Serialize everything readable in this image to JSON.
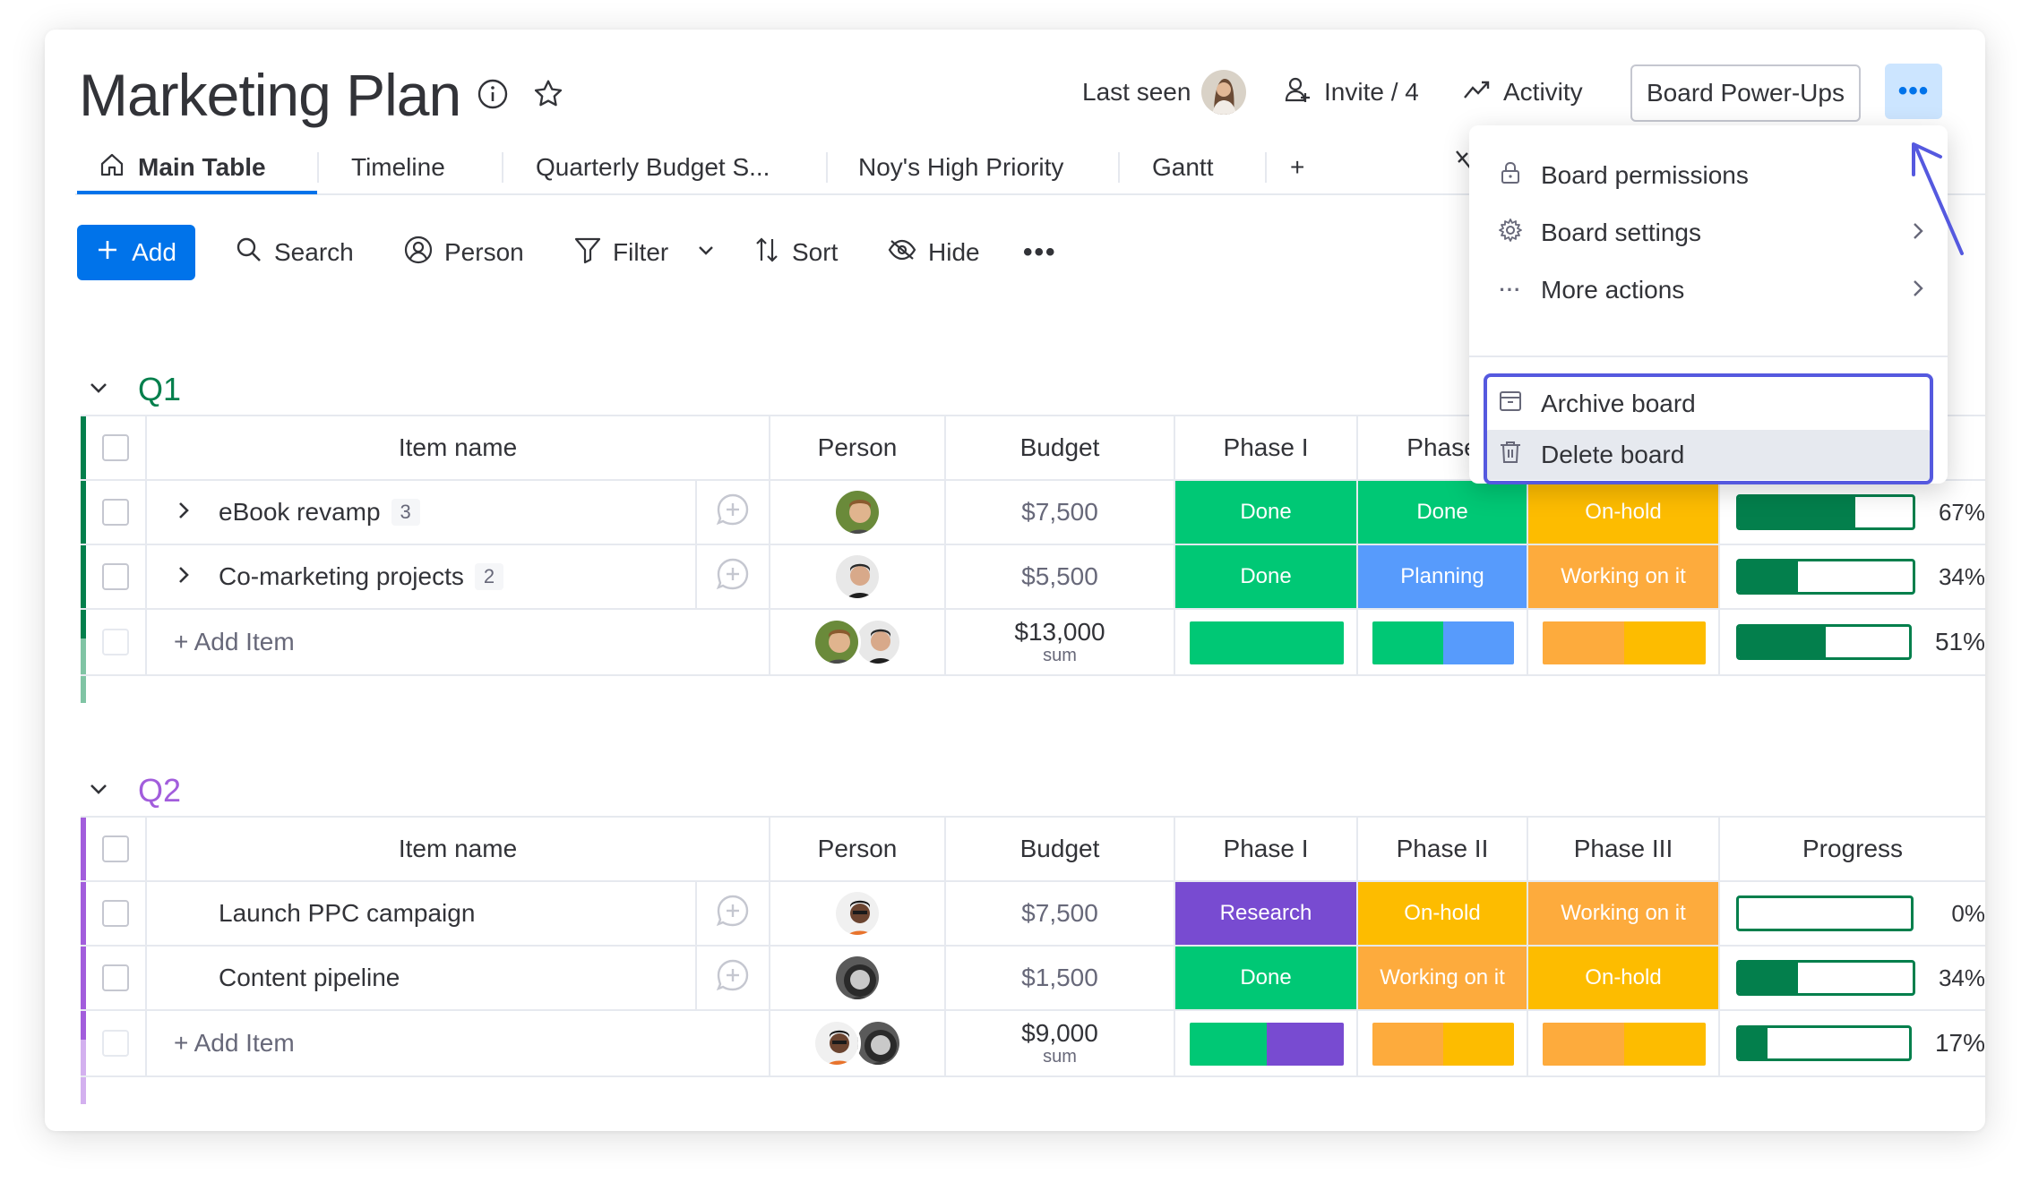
{
  "header": {
    "title": "Marketing Plan",
    "last_seen_label": "Last seen",
    "invite_label": "Invite / 4",
    "activity_label": "Activity",
    "powerups_label": "Board Power-Ups",
    "more_button_glyph": "•••"
  },
  "tabs": [
    {
      "label": "Main Table",
      "active": true
    },
    {
      "label": "Timeline"
    },
    {
      "label": "Quarterly Budget S..."
    },
    {
      "label": "Noy's High Priority"
    },
    {
      "label": "Gantt"
    },
    {
      "label": "+"
    }
  ],
  "toolbar": {
    "add_label": "Add",
    "search_label": "Search",
    "person_label": "Person",
    "filter_label": "Filter",
    "sort_label": "Sort",
    "hide_label": "Hide",
    "more_glyph": "•••"
  },
  "colors": {
    "primary": "#0073ea",
    "done": "#00c875",
    "planning": "#579bfc",
    "on_hold": "#fdbc00",
    "working": "#fdab3d",
    "research": "#784bd1",
    "q1": "#037f4c",
    "q2": "#a25ddc",
    "highlight": "#5559df"
  },
  "columns": {
    "item": "Item name",
    "person": "Person",
    "budget": "Budget",
    "phase1": "Phase I",
    "phase2": "Phase II",
    "phase2_clipped": "Phase",
    "phase3": "Phase III",
    "progress": "Progress"
  },
  "groups": [
    {
      "name": "Q1",
      "rows": [
        {
          "name": "eBook revamp",
          "subitems": "3",
          "budget": "$7,500",
          "phase1": "Done",
          "phase2": "Done",
          "phase3": "On-hold",
          "progress": 0.67,
          "progress_label": "67%"
        },
        {
          "name": "Co-marketing projects",
          "subitems": "2",
          "budget": "$5,500",
          "phase1": "Done",
          "phase2": "Planning",
          "phase3": "Working on it",
          "progress": 0.34,
          "progress_label": "34%"
        }
      ],
      "add_item_label": "+ Add Item",
      "summary": {
        "budget": "$13,000",
        "budget_sub": "sum",
        "progress": 0.51,
        "progress_label": "51%"
      }
    },
    {
      "name": "Q2",
      "rows": [
        {
          "name": "Launch PPC campaign",
          "budget": "$7,500",
          "phase1": "Research",
          "phase2": "On-hold",
          "phase3": "Working on it",
          "progress": 0.0,
          "progress_label": "0%"
        },
        {
          "name": "Content pipeline",
          "budget": "$1,500",
          "phase1": "Done",
          "phase2": "Working on it",
          "phase3": "On-hold",
          "progress": 0.34,
          "progress_label": "34%"
        }
      ],
      "add_item_label": "+ Add Item",
      "summary": {
        "budget": "$9,000",
        "budget_sub": "sum",
        "progress": 0.17,
        "progress_label": "17%"
      }
    }
  ],
  "menu": {
    "items": [
      {
        "label": "Board permissions",
        "icon": "lock-icon"
      },
      {
        "label": "Board settings",
        "icon": "gear-icon",
        "submenu": true
      },
      {
        "label": "More actions",
        "icon": "dots-icon",
        "submenu": true
      },
      {
        "label": "Archive board",
        "icon": "archive-icon"
      },
      {
        "label": "Delete board",
        "icon": "trash-icon"
      }
    ]
  }
}
